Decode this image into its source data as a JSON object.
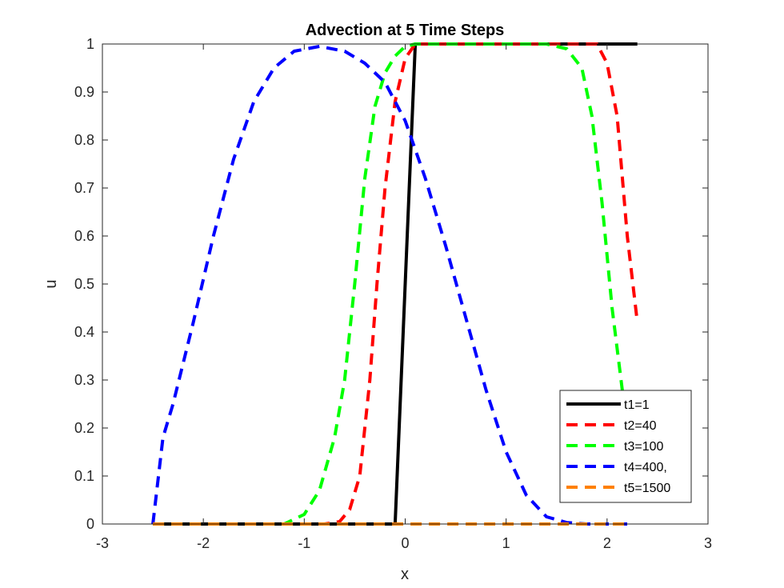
{
  "chart_data": {
    "type": "line",
    "title": "Advection at 5 Time Steps",
    "xlabel": "x",
    "ylabel": "u",
    "xlim": [
      -3,
      3
    ],
    "ylim": [
      0,
      1
    ],
    "xticks": [
      -3,
      -2,
      -1,
      0,
      1,
      2,
      3
    ],
    "xtick_labels": [
      "-3",
      "-2",
      "-1",
      "0",
      "1",
      "2",
      "3"
    ],
    "yticks": [
      0,
      0.1,
      0.2,
      0.3,
      0.4,
      0.5,
      0.6,
      0.7,
      0.8,
      0.9,
      1
    ],
    "ytick_labels": [
      "0",
      "0.1",
      "0.2",
      "0.3",
      "0.4",
      "0.5",
      "0.6",
      "0.7",
      "0.8",
      "0.9",
      "1"
    ],
    "grid": false,
    "legend_position": "bottom-right",
    "series": [
      {
        "name": "t1=1",
        "color": "#000000",
        "style": "solid",
        "points": [
          [
            -2.5,
            0
          ],
          [
            -0.1,
            0
          ],
          [
            0.1,
            1
          ],
          [
            2.3,
            1
          ]
        ]
      },
      {
        "name": "t2=40",
        "color": "#ff0000",
        "style": "dashed",
        "points": [
          [
            -2.5,
            0
          ],
          [
            -0.8,
            0
          ],
          [
            -0.65,
            0.005
          ],
          [
            -0.55,
            0.03
          ],
          [
            -0.45,
            0.1
          ],
          [
            -0.35,
            0.3
          ],
          [
            -0.28,
            0.5
          ],
          [
            -0.2,
            0.7
          ],
          [
            -0.1,
            0.88
          ],
          [
            0,
            0.97
          ],
          [
            0.1,
            1
          ],
          [
            1.9,
            1
          ],
          [
            2.0,
            0.96
          ],
          [
            2.1,
            0.85
          ],
          [
            2.2,
            0.6
          ],
          [
            2.3,
            0.42
          ]
        ]
      },
      {
        "name": "t3=100",
        "color": "#00ff00",
        "style": "dashed",
        "points": [
          [
            -2.5,
            0
          ],
          [
            -1.2,
            0
          ],
          [
            -1.0,
            0.02
          ],
          [
            -0.85,
            0.07
          ],
          [
            -0.7,
            0.18
          ],
          [
            -0.6,
            0.3
          ],
          [
            -0.5,
            0.5
          ],
          [
            -0.4,
            0.72
          ],
          [
            -0.3,
            0.87
          ],
          [
            -0.2,
            0.94
          ],
          [
            -0.1,
            0.975
          ],
          [
            0,
            0.995
          ],
          [
            0.1,
            1
          ],
          [
            1.4,
            1
          ],
          [
            1.6,
            0.99
          ],
          [
            1.75,
            0.95
          ],
          [
            1.85,
            0.85
          ],
          [
            1.95,
            0.67
          ],
          [
            2.05,
            0.45
          ],
          [
            2.15,
            0.28
          ],
          [
            2.2,
            0.2
          ],
          [
            2.25,
            0.1
          ]
        ]
      },
      {
        "name": "t4=400,",
        "color": "#0000ff",
        "style": "dashed",
        "points": [
          [
            -2.5,
            0
          ],
          [
            -2.4,
            0.18
          ],
          [
            -2.3,
            0.25
          ],
          [
            -2.1,
            0.42
          ],
          [
            -1.9,
            0.6
          ],
          [
            -1.7,
            0.76
          ],
          [
            -1.5,
            0.88
          ],
          [
            -1.3,
            0.95
          ],
          [
            -1.1,
            0.985
          ],
          [
            -0.85,
            0.995
          ],
          [
            -0.6,
            0.985
          ],
          [
            -0.4,
            0.96
          ],
          [
            -0.2,
            0.92
          ],
          [
            0,
            0.84
          ],
          [
            0.2,
            0.72
          ],
          [
            0.4,
            0.58
          ],
          [
            0.6,
            0.43
          ],
          [
            0.8,
            0.28
          ],
          [
            1.0,
            0.15
          ],
          [
            1.2,
            0.06
          ],
          [
            1.4,
            0.015
          ],
          [
            1.6,
            0.003
          ],
          [
            1.8,
            0
          ],
          [
            2.2,
            0
          ]
        ]
      },
      {
        "name": "t5=1500",
        "color": "#ff8000",
        "style": "dashed",
        "points": [
          [
            -2.5,
            0
          ],
          [
            2.2,
            0
          ]
        ]
      }
    ]
  }
}
